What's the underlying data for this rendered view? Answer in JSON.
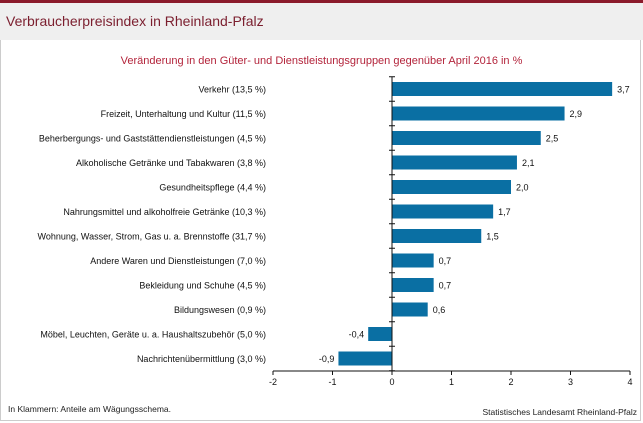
{
  "header": {
    "title": "Verbraucherpreisindex in Rheinland-Pfalz"
  },
  "chart_data": {
    "type": "bar",
    "orientation": "horizontal",
    "title": "Veränderung in den Güter- und Dienstleistungsgruppen gegenüber April 2016 in %",
    "categories": [
      "Verkehr (13,5 %)",
      "Freizeit, Unterhaltung und Kultur (11,5 %)",
      "Beherbergungs- und Gaststättendienstleistungen (4,5 %)",
      "Alkoholische Getränke und Tabakwaren (3,8 %)",
      "Gesundheitspflege (4,4 %)",
      "Nahrungsmittel und alkoholfreie Getränke (10,3 %)",
      "Wohnung, Wasser, Strom, Gas u. a. Brennstoffe (31,7 %)",
      "Andere Waren und Dienstleistungen (7,0 %)",
      "Bekleidung und Schuhe (4,5 %)",
      "Bildungswesen (0,9 %)",
      "Möbel, Leuchten, Geräte u. a. Haushaltszubehör  (5,0 %)",
      "Nachrichtenübermittlung (3,0 %)"
    ],
    "values": [
      3.7,
      2.9,
      2.5,
      2.1,
      2.0,
      1.7,
      1.5,
      0.7,
      0.7,
      0.6,
      -0.4,
      -0.9
    ],
    "value_labels": [
      "3,7",
      "2,9",
      "2,5",
      "2,1",
      "2,0",
      "1,7",
      "1,5",
      "0,7",
      "0,7",
      "0,6",
      "-0,4",
      "-0,9"
    ],
    "xlim": [
      -2,
      4
    ],
    "xticks": [
      "-2",
      "-1",
      "0",
      "1",
      "2",
      "3",
      "4"
    ],
    "bar_color": "#0a6fa3",
    "grid": false
  },
  "footer": {
    "note": "In Klammern: Anteile am Wägungsschema.",
    "source": "Statistisches Landesamt Rheinland-Pfalz"
  }
}
